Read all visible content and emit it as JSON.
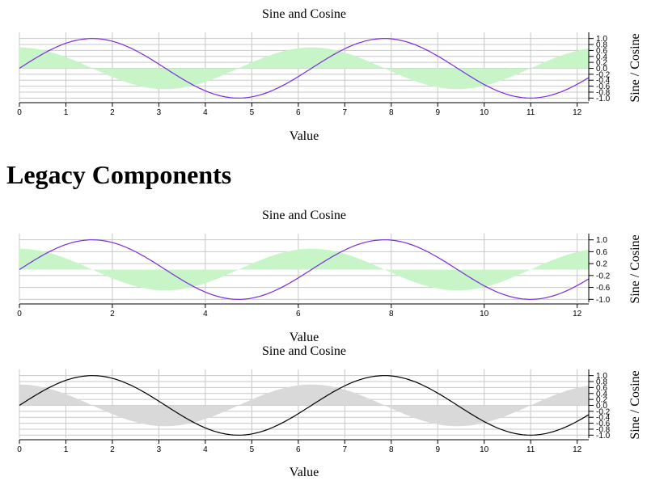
{
  "heading": "Legacy Components",
  "chart_data": [
    {
      "type": "line",
      "title": "Sine and Cosine",
      "xlabel": "Value",
      "ylabel": "Sine / Cosine",
      "xlim": [
        0,
        12.25
      ],
      "ylim": [
        -1.1,
        1.1
      ],
      "x_ticks": [
        0,
        1,
        2,
        3,
        4,
        5,
        6,
        7,
        8,
        9,
        10,
        11,
        12
      ],
      "y_ticks": [
        1.0,
        0.8,
        0.6,
        0.4,
        0.2,
        0.0,
        -0.2,
        -0.4,
        -0.6,
        -0.8,
        -1.0
      ],
      "grid": true,
      "line_color": "#7a2be0",
      "fill_color": "#c8f5c8",
      "series": [
        {
          "kind": "line",
          "function": "sin",
          "x_range": [
            0,
            12.25
          ]
        },
        {
          "kind": "area",
          "function": "0.7*cos",
          "x_range": [
            0,
            12.25
          ]
        }
      ]
    },
    {
      "type": "line",
      "title": "Sine and Cosine",
      "xlabel": "Value",
      "ylabel": "Sine / Cosine",
      "xlim": [
        0,
        12.25
      ],
      "ylim": [
        -1.1,
        1.1
      ],
      "x_ticks": [
        0,
        2,
        4,
        6,
        8,
        10,
        12
      ],
      "y_ticks": [
        1.0,
        0.6,
        0.2,
        -0.2,
        -0.6,
        -1.0
      ],
      "grid": true,
      "line_color": "#7a2be0",
      "fill_color": "#c8f5c8",
      "series": [
        {
          "kind": "line",
          "function": "sin",
          "x_range": [
            0,
            12.25
          ]
        },
        {
          "kind": "area",
          "function": "0.7*cos",
          "x_range": [
            0,
            12.25
          ]
        }
      ]
    },
    {
      "type": "line",
      "title": "Sine and Cosine",
      "xlabel": "Value",
      "ylabel": "Sine / Cosine",
      "xlim": [
        0,
        12.25
      ],
      "ylim": [
        -1.1,
        1.1
      ],
      "x_ticks": [
        0,
        1,
        2,
        3,
        4,
        5,
        6,
        7,
        8,
        9,
        10,
        11,
        12
      ],
      "y_ticks": [
        1.0,
        0.8,
        0.6,
        0.4,
        0.2,
        0.0,
        -0.2,
        -0.4,
        -0.6,
        -0.8,
        -1.0
      ],
      "grid": true,
      "line_color": "#000000",
      "fill_color": "#d9d9d9",
      "series": [
        {
          "kind": "line",
          "function": "sin",
          "x_range": [
            0,
            12.25
          ]
        },
        {
          "kind": "area",
          "function": "0.7*cos",
          "x_range": [
            0,
            12.25
          ]
        }
      ]
    }
  ]
}
